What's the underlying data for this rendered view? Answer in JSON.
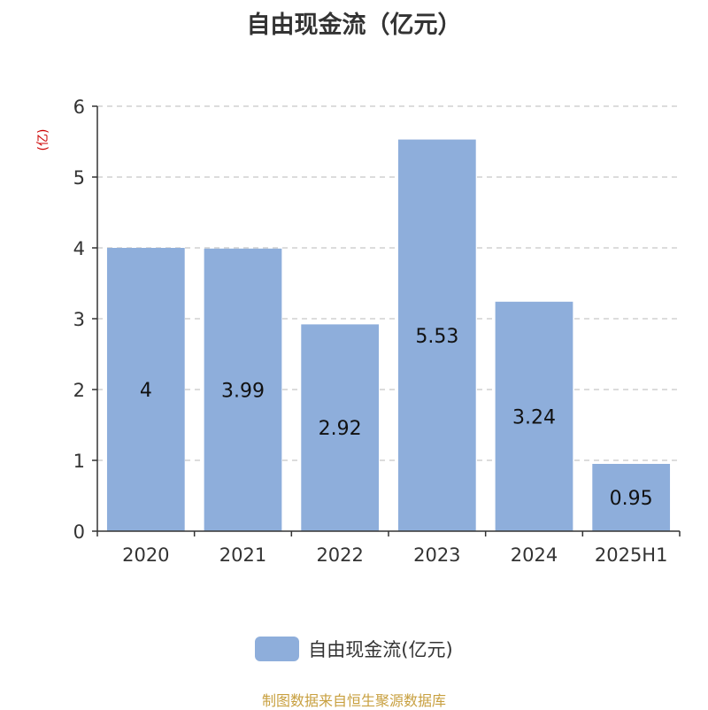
{
  "chart_data": {
    "type": "bar",
    "title": "自由现金流（亿元）",
    "ylabel": "(亿)",
    "categories": [
      "2020",
      "2021",
      "2022",
      "2023",
      "2024",
      "2025H1"
    ],
    "series": [
      {
        "name": "自由现金流(亿元)",
        "values": [
          4,
          3.99,
          2.92,
          5.53,
          3.24,
          0.95
        ]
      }
    ],
    "data_labels": [
      "4",
      "3.99",
      "2.92",
      "5.53",
      "3.24",
      "0.95"
    ],
    "ylim": [
      0,
      6
    ],
    "yticks": [
      0,
      1,
      2,
      3,
      4,
      5,
      6
    ],
    "grid": true,
    "legend_position": "bottom"
  },
  "colors": {
    "bar": "#8eaedb",
    "title": "#333333",
    "axis_label": "#cc0000",
    "source": "#c8a040"
  },
  "footer": {
    "source": "制图数据来自恒生聚源数据库"
  }
}
